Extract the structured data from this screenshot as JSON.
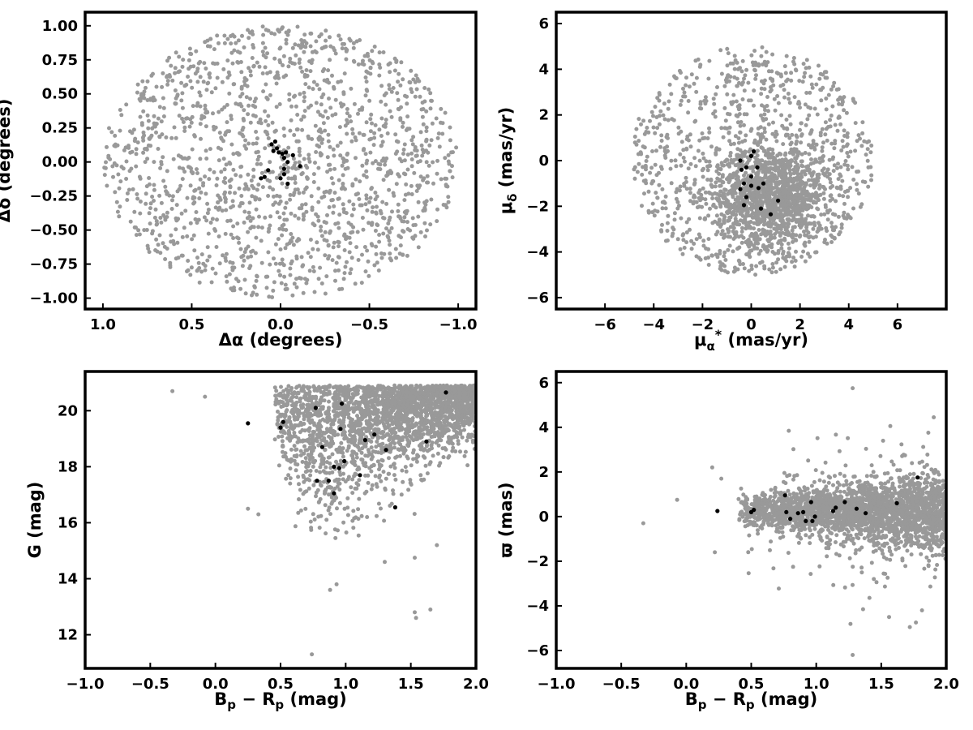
{
  "chart_data": [
    {
      "type": "scatter",
      "panel": "top-left",
      "xlabel": "Δα (degrees)",
      "ylabel": "Δδ (degrees)",
      "xlim": [
        1.1,
        -1.1
      ],
      "ylim": [
        -1.08,
        1.1
      ],
      "x_inverted": true,
      "xticks": [
        1.0,
        0.5,
        0.0,
        -0.5,
        -1.0
      ],
      "xtick_labels": [
        "1.0",
        "0.5",
        "0.0",
        "−0.5",
        "−1.0"
      ],
      "yticks": [
        -1.0,
        -0.75,
        -0.5,
        -0.25,
        0.0,
        0.25,
        0.5,
        0.75,
        1.0
      ],
      "ytick_labels": [
        "−1.00",
        "−0.75",
        "−0.50",
        "−0.25",
        "0.00",
        "0.25",
        "0.50",
        "0.75",
        "1.00"
      ],
      "grid": false,
      "series": [
        {
          "color": "#999999",
          "distribution": {
            "kind": "disk",
            "center": [
              0,
              0
            ],
            "radius": 1.0,
            "count": 1600
          }
        },
        {
          "color": "#000000",
          "points": [
            [
              0.03,
              0.15
            ],
            [
              0.05,
              0.13
            ],
            [
              0.02,
              0.1
            ],
            [
              0.01,
              0.07
            ],
            [
              -0.01,
              0.06
            ],
            [
              -0.03,
              0.07
            ],
            [
              -0.07,
              0.05
            ],
            [
              0.04,
              0.08
            ],
            [
              -0.02,
              0.03
            ],
            [
              -0.04,
              0.0
            ],
            [
              0.07,
              -0.06
            ],
            [
              -0.11,
              -0.03
            ],
            [
              0.11,
              -0.12
            ],
            [
              0.09,
              -0.11
            ],
            [
              0.0,
              -0.12
            ],
            [
              -0.02,
              -0.09
            ],
            [
              -0.02,
              -0.05
            ],
            [
              -0.04,
              -0.16
            ]
          ]
        }
      ]
    },
    {
      "type": "scatter",
      "panel": "top-right",
      "xlabel": "μα* (mas/yr)",
      "ylabel": "μδ (mas/yr)",
      "xlim": [
        -8,
        8
      ],
      "ylim": [
        -6.5,
        6.5
      ],
      "xticks": [
        -6,
        -4,
        -2,
        0,
        2,
        4,
        6
      ],
      "xtick_labels": [
        "−6",
        "−4",
        "−2",
        "0",
        "2",
        "4",
        "6"
      ],
      "yticks": [
        -6,
        -4,
        -2,
        0,
        2,
        4,
        6
      ],
      "ytick_labels": [
        "−6",
        "−4",
        "−2",
        "0",
        "2",
        "4",
        "6"
      ],
      "grid": false,
      "series": [
        {
          "color": "#999999",
          "distribution": {
            "kind": "disk",
            "center": [
              0,
              0
            ],
            "radius": 5.0,
            "count": 2200,
            "dense_core": [
              0.8,
              -1.5
            ]
          }
        },
        {
          "color": "#000000",
          "points": [
            [
              -0.45,
              0.0
            ],
            [
              0.1,
              0.4
            ],
            [
              0.0,
              0.2
            ],
            [
              0.25,
              -0.3
            ],
            [
              -0.2,
              -0.3
            ],
            [
              -0.4,
              -0.4
            ],
            [
              0.0,
              -0.7
            ],
            [
              -0.3,
              -1.0
            ],
            [
              0.0,
              -1.1
            ],
            [
              0.3,
              -1.2
            ],
            [
              -0.45,
              -1.25
            ],
            [
              0.5,
              -1.0
            ],
            [
              -0.2,
              -1.6
            ],
            [
              1.1,
              -1.75
            ],
            [
              -0.3,
              -1.95
            ],
            [
              0.4,
              -2.1
            ],
            [
              0.8,
              -2.35
            ]
          ]
        }
      ]
    },
    {
      "type": "scatter",
      "panel": "bottom-left",
      "xlabel": "Bp − Rp (mag)",
      "ylabel": "G (mag)",
      "xlim": [
        -1.0,
        2.0
      ],
      "ylim": [
        10.8,
        21.4
      ],
      "xticks": [
        -1.0,
        -0.5,
        0.0,
        0.5,
        1.0,
        1.5,
        2.0
      ],
      "xtick_labels": [
        "−1.0",
        "−0.5",
        "0.0",
        "0.5",
        "1.0",
        "1.5",
        "2.0"
      ],
      "yticks": [
        12,
        14,
        16,
        18,
        20
      ],
      "ytick_labels": [
        "12",
        "14",
        "16",
        "18",
        "20"
      ],
      "grid": false,
      "series": [
        {
          "color": "#999999",
          "distribution": {
            "kind": "cmd",
            "count": 2600
          },
          "extra_points": [
            [
              -0.33,
              20.7
            ],
            [
              -0.08,
              20.5
            ],
            [
              0.25,
              16.5
            ],
            [
              0.33,
              16.3
            ],
            [
              0.74,
              11.3
            ],
            [
              0.93,
              13.8
            ],
            [
              0.88,
              13.6
            ],
            [
              1.3,
              14.6
            ],
            [
              1.53,
              12.8
            ],
            [
              1.54,
              12.6
            ],
            [
              1.53,
              14.75
            ],
            [
              1.65,
              12.9
            ],
            [
              1.7,
              15.2
            ]
          ]
        },
        {
          "color": "#000000",
          "points": [
            [
              0.25,
              19.55
            ],
            [
              0.5,
              19.4
            ],
            [
              0.52,
              19.6
            ],
            [
              0.77,
              20.1
            ],
            [
              0.97,
              20.25
            ],
            [
              0.82,
              18.7
            ],
            [
              0.96,
              19.35
            ],
            [
              1.22,
              19.15
            ],
            [
              1.15,
              18.95
            ],
            [
              1.31,
              18.6
            ],
            [
              0.99,
              18.2
            ],
            [
              0.91,
              18.0
            ],
            [
              0.95,
              17.95
            ],
            [
              0.78,
              17.5
            ],
            [
              0.87,
              17.5
            ],
            [
              0.91,
              17.05
            ],
            [
              1.11,
              17.7
            ],
            [
              1.38,
              16.55
            ],
            [
              1.62,
              18.9
            ],
            [
              1.77,
              20.65
            ]
          ]
        }
      ]
    },
    {
      "type": "scatter",
      "panel": "bottom-right",
      "xlabel": "Bp − Rp (mag)",
      "ylabel": "ϖ (mas)",
      "xlim": [
        -1.0,
        2.0
      ],
      "ylim": [
        -6.8,
        6.5
      ],
      "xticks": [
        -1.0,
        -0.5,
        0.0,
        0.5,
        1.0,
        1.5,
        2.0
      ],
      "xtick_labels": [
        "−1.0",
        "−0.5",
        "0.0",
        "0.5",
        "1.0",
        "1.5",
        "2.0"
      ],
      "yticks": [
        -6,
        -4,
        -2,
        0,
        2,
        4,
        6
      ],
      "ytick_labels": [
        "−6",
        "−4",
        "−2",
        "0",
        "2",
        "4",
        "6"
      ],
      "grid": false,
      "series": [
        {
          "color": "#999999",
          "distribution": {
            "kind": "parallax",
            "count": 2600
          },
          "extra_points": [
            [
              -0.33,
              -0.3
            ],
            [
              -0.07,
              0.75
            ],
            [
              0.2,
              2.2
            ],
            [
              0.22,
              -1.6
            ],
            [
              0.27,
              1.7
            ],
            [
              1.28,
              5.75
            ],
            [
              1.28,
              -6.2
            ],
            [
              1.72,
              -4.95
            ],
            [
              1.36,
              -4.15
            ],
            [
              1.56,
              -4.5
            ]
          ]
        },
        {
          "color": "#000000",
          "points": [
            [
              0.24,
              0.25
            ],
            [
              0.5,
              0.2
            ],
            [
              0.52,
              0.3
            ],
            [
              0.76,
              0.95
            ],
            [
              0.8,
              -0.1
            ],
            [
              0.77,
              0.2
            ],
            [
              0.86,
              0.15
            ],
            [
              0.9,
              0.2
            ],
            [
              0.92,
              -0.2
            ],
            [
              0.96,
              0.65
            ],
            [
              0.97,
              -0.2
            ],
            [
              0.99,
              0.0
            ],
            [
              1.13,
              0.25
            ],
            [
              1.15,
              0.4
            ],
            [
              1.22,
              0.65
            ],
            [
              1.31,
              0.35
            ],
            [
              1.38,
              0.15
            ],
            [
              1.62,
              0.6
            ],
            [
              1.78,
              1.75
            ]
          ]
        }
      ]
    }
  ]
}
